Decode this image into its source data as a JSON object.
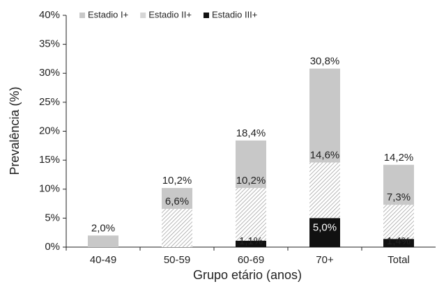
{
  "chart_data": {
    "type": "overlap-bar",
    "y_label": "Prevalência (%)",
    "x_label": "Grupo etário (anos)",
    "categories": [
      "40-49",
      "50-59",
      "60-69",
      "70+",
      "Total"
    ],
    "series": [
      {
        "name": "Estadio I+",
        "color": "#c8c8c8",
        "values": [
          2.0,
          10.2,
          18.4,
          30.8,
          14.2
        ],
        "value_labels": [
          "2,0%",
          "10,2%",
          "18,4%",
          "30,8%",
          "14,2%"
        ]
      },
      {
        "name": "Estadio II+",
        "color": "#c8c8c8",
        "pattern": "hatch",
        "values": [
          null,
          6.6,
          10.2,
          14.6,
          7.3
        ],
        "value_labels": [
          null,
          "6,6%",
          "10,2%",
          "14,6%",
          "7,3%"
        ]
      },
      {
        "name": "Estadio III+",
        "color": "#111111",
        "values": [
          null,
          null,
          1.1,
          5.0,
          1.4
        ],
        "value_labels": [
          null,
          null,
          "1,1%",
          "5,0%",
          "1,4%"
        ]
      }
    ],
    "ylim": [
      0,
      40
    ],
    "yticks": [
      {
        "value": 0,
        "label": "0%"
      },
      {
        "value": 5,
        "label": "5%"
      },
      {
        "value": 10,
        "label": "10%"
      },
      {
        "value": 15,
        "label": "15%"
      },
      {
        "value": 20,
        "label": "20%"
      },
      {
        "value": 25,
        "label": "25%"
      },
      {
        "value": 30,
        "label": "30%"
      },
      {
        "value": 35,
        "label": "35%"
      },
      {
        "value": 40,
        "label": "40%"
      }
    ],
    "legend": "top-left"
  }
}
